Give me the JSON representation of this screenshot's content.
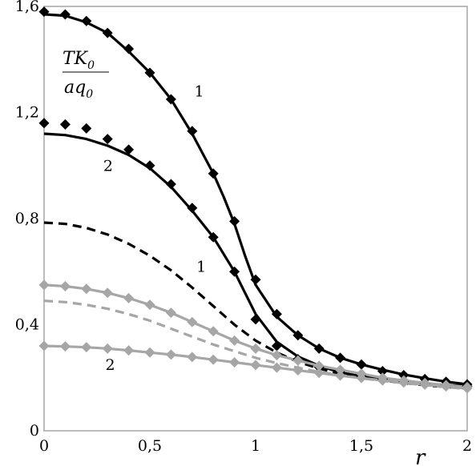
{
  "chart_data": {
    "type": "line",
    "title": "",
    "xlabel": "r",
    "ylabel_num_base": "TK",
    "ylabel_num_sub": "0",
    "ylabel_den_base": "aq",
    "ylabel_den_sub": "0",
    "xlim": [
      0,
      2
    ],
    "ylim": [
      0,
      1.6
    ],
    "xticks": [
      0,
      0.5,
      1,
      1.5,
      2
    ],
    "xtick_labels": [
      "0",
      "0,5",
      "1",
      "1,5",
      "2"
    ],
    "yticks": [
      0,
      0.4,
      0.8,
      1.2,
      1.6
    ],
    "ytick_labels": [
      "0",
      "0,4",
      "0,8",
      "1,2",
      "1,6"
    ],
    "grid": false,
    "series": [
      {
        "name": "1",
        "color": "#000000",
        "style": "solid",
        "x": [
          0,
          0.1,
          0.2,
          0.3,
          0.4,
          0.5,
          0.6,
          0.7,
          0.8,
          0.85,
          0.9,
          0.95,
          1.0,
          1.1,
          1.2,
          1.3,
          1.4,
          1.5,
          1.6,
          1.7,
          1.8,
          1.9,
          2.0
        ],
        "y": [
          1.57,
          1.565,
          1.54,
          1.5,
          1.43,
          1.35,
          1.25,
          1.12,
          0.97,
          0.88,
          0.78,
          0.66,
          0.55,
          0.43,
          0.36,
          0.31,
          0.275,
          0.25,
          0.23,
          0.212,
          0.198,
          0.185,
          0.175
        ]
      },
      {
        "name": "2",
        "color": "#000000",
        "style": "solid",
        "x": [
          0,
          0.1,
          0.2,
          0.3,
          0.4,
          0.5,
          0.6,
          0.7,
          0.8,
          0.9,
          0.95,
          1.0,
          1.1,
          1.2,
          1.3,
          1.4,
          1.5,
          1.6,
          1.7,
          1.8,
          1.9,
          2.0
        ],
        "y": [
          1.12,
          1.115,
          1.1,
          1.075,
          1.04,
          0.99,
          0.92,
          0.83,
          0.73,
          0.6,
          0.52,
          0.44,
          0.335,
          0.28,
          0.245,
          0.22,
          0.205,
          0.195,
          0.185,
          0.178,
          0.172,
          0.168
        ]
      },
      {
        "name": "",
        "color": "#000000",
        "style": "dashed",
        "x": [
          0,
          0.1,
          0.2,
          0.3,
          0.4,
          0.5,
          0.6,
          0.7,
          0.8,
          0.9,
          1.0,
          1.1,
          1.2,
          1.3,
          1.4,
          1.5,
          1.6,
          1.7,
          1.8,
          1.9,
          2.0
        ],
        "y": [
          0.785,
          0.78,
          0.765,
          0.74,
          0.705,
          0.66,
          0.605,
          0.54,
          0.47,
          0.4,
          0.34,
          0.295,
          0.26,
          0.235,
          0.215,
          0.2,
          0.19,
          0.18,
          0.172,
          0.165,
          0.16
        ]
      },
      {
        "name": "1",
        "color": "#a6a6a6",
        "style": "solid",
        "x": [
          0,
          0.1,
          0.2,
          0.3,
          0.4,
          0.5,
          0.6,
          0.7,
          0.8,
          0.9,
          1.0,
          1.1,
          1.2,
          1.3,
          1.4,
          1.5,
          1.6,
          1.7,
          1.8,
          1.9,
          2.0
        ],
        "y": [
          0.55,
          0.545,
          0.535,
          0.52,
          0.5,
          0.475,
          0.445,
          0.41,
          0.375,
          0.34,
          0.31,
          0.285,
          0.265,
          0.245,
          0.23,
          0.215,
          0.2,
          0.19,
          0.18,
          0.172,
          0.165
        ]
      },
      {
        "name": "",
        "color": "#a6a6a6",
        "style": "dashed",
        "x": [
          0,
          0.1,
          0.2,
          0.3,
          0.4,
          0.5,
          0.6,
          0.7,
          0.8,
          0.9,
          1.0,
          1.1,
          1.2,
          1.3,
          1.4,
          1.5,
          1.6,
          1.7,
          1.8,
          1.9,
          2.0
        ],
        "y": [
          0.49,
          0.485,
          0.475,
          0.46,
          0.44,
          0.415,
          0.385,
          0.355,
          0.325,
          0.3,
          0.275,
          0.255,
          0.238,
          0.222,
          0.21,
          0.198,
          0.188,
          0.18,
          0.172,
          0.165,
          0.158
        ]
      },
      {
        "name": "2",
        "color": "#a6a6a6",
        "style": "solid",
        "x": [
          0,
          0.1,
          0.2,
          0.3,
          0.4,
          0.5,
          0.6,
          0.7,
          0.8,
          0.9,
          1.0,
          1.1,
          1.2,
          1.3,
          1.4,
          1.5,
          1.6,
          1.7,
          1.8,
          1.9,
          2.0
        ],
        "y": [
          0.32,
          0.318,
          0.315,
          0.31,
          0.303,
          0.295,
          0.287,
          0.278,
          0.268,
          0.258,
          0.248,
          0.238,
          0.228,
          0.218,
          0.208,
          0.199,
          0.19,
          0.182,
          0.174,
          0.167,
          0.16
        ]
      }
    ],
    "markers": [
      {
        "series_index": 0,
        "color": "#000000",
        "x": [
          0,
          0.1,
          0.2,
          0.3,
          0.4,
          0.5,
          0.6,
          0.7,
          0.8,
          0.9,
          1.0,
          1.1,
          1.2,
          1.3,
          1.4,
          1.5,
          1.6,
          1.7,
          1.8,
          1.9,
          2.0
        ],
        "y": [
          1.58,
          1.57,
          1.545,
          1.5,
          1.44,
          1.35,
          1.25,
          1.13,
          0.97,
          0.79,
          0.57,
          0.44,
          0.36,
          0.31,
          0.275,
          0.25,
          0.225,
          0.21,
          0.195,
          0.185,
          0.175
        ]
      },
      {
        "series_index": 1,
        "color": "#000000",
        "x": [
          0,
          0.1,
          0.2,
          0.3,
          0.4,
          0.5,
          0.6,
          0.7,
          0.8,
          0.9,
          1.0,
          1.1,
          1.2,
          1.3,
          1.4,
          1.5,
          1.6,
          1.7,
          1.8,
          1.9,
          2.0
        ],
        "y": [
          1.16,
          1.155,
          1.14,
          1.1,
          1.06,
          1.0,
          0.93,
          0.84,
          0.73,
          0.6,
          0.42,
          0.32,
          0.27,
          0.24,
          0.22,
          0.205,
          0.195,
          0.185,
          0.178,
          0.172,
          0.168
        ]
      },
      {
        "series_index": 3,
        "color": "#a6a6a6",
        "x": [
          0,
          0.1,
          0.2,
          0.3,
          0.4,
          0.5,
          0.6,
          0.7,
          0.8,
          0.9,
          1.0,
          1.1,
          1.2,
          1.3,
          1.4,
          1.5,
          1.6,
          1.7,
          1.8,
          1.9,
          2.0
        ],
        "y": [
          0.55,
          0.545,
          0.535,
          0.52,
          0.5,
          0.475,
          0.445,
          0.41,
          0.375,
          0.34,
          0.31,
          0.285,
          0.265,
          0.245,
          0.23,
          0.215,
          0.2,
          0.19,
          0.18,
          0.172,
          0.165
        ]
      },
      {
        "series_index": 5,
        "color": "#a6a6a6",
        "x": [
          0,
          0.1,
          0.2,
          0.3,
          0.4,
          0.5,
          0.6,
          0.7,
          0.8,
          0.9,
          1.0,
          1.1,
          1.2,
          1.3,
          1.4,
          1.5,
          1.6,
          1.7,
          1.8,
          1.9,
          2.0
        ],
        "y": [
          0.32,
          0.318,
          0.315,
          0.31,
          0.303,
          0.295,
          0.287,
          0.278,
          0.268,
          0.258,
          0.248,
          0.238,
          0.228,
          0.218,
          0.208,
          0.199,
          0.19,
          0.182,
          0.174,
          0.167,
          0.16
        ]
      }
    ],
    "curve_labels": [
      {
        "text": "1",
        "color": "#000000",
        "x": 0.71,
        "y": 1.26
      },
      {
        "text": "2",
        "color": "#000000",
        "x": 0.28,
        "y": 0.98
      },
      {
        "text": "1",
        "color": "#000000",
        "x": 0.72,
        "y": 0.6
      },
      {
        "text": "2",
        "color": "#000000",
        "x": 0.29,
        "y": 0.23
      }
    ]
  }
}
